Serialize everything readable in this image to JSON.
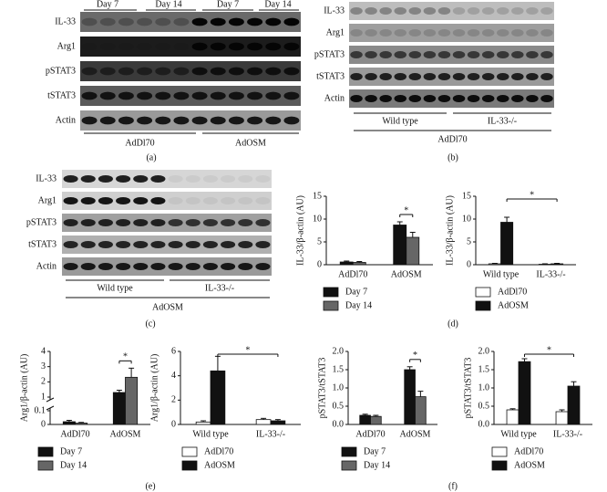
{
  "blots": [
    {
      "rows": [
        "IL-33",
        "Arg1",
        "pSTAT3",
        "tSTAT3",
        "Actin"
      ],
      "top_labels": [
        "Day 7",
        "Day 14",
        "Day 7",
        "Day 14"
      ],
      "groups": [
        "AdDl70",
        "AdOSM"
      ],
      "caption": "(a)"
    },
    {
      "rows": [
        "IL-33",
        "Arg1",
        "pSTAT3",
        "tSTAT3",
        "Actin"
      ],
      "groups": [
        "Wild type",
        "IL-33-/-"
      ],
      "treatment": "AdDl70",
      "caption": "(b)"
    },
    {
      "rows": [
        "IL-33",
        "Arg1",
        "pSTAT3",
        "tSTAT3",
        "Actin"
      ],
      "groups": [
        "Wild type",
        "IL-33-/-"
      ],
      "treatment": "AdOSM",
      "caption": "(c)"
    }
  ],
  "panel_labels": [
    "(d)",
    "(e)",
    "(f)"
  ],
  "chart_data": [
    {
      "type": "bar",
      "ylabel": "IL-33/β-actin (AU)",
      "categories": [
        "AdDl70",
        "AdOSM"
      ],
      "ylim": [
        0,
        15
      ],
      "yticks": [
        0,
        5,
        10,
        15
      ],
      "annotation": "*",
      "significance": "within",
      "series": [
        {
          "name": "Day 7",
          "color": "#111111",
          "values": [
            0.6,
            8.7
          ],
          "errors": [
            0.2,
            0.7
          ]
        },
        {
          "name": "Day 14",
          "color": "#666666",
          "values": [
            0.5,
            6.0
          ],
          "errors": [
            0.2,
            1.1
          ]
        }
      ]
    },
    {
      "type": "bar",
      "ylabel": "IL-33/β-actin (AU)",
      "categories": [
        "Wild type",
        "IL-33-/-"
      ],
      "ylim": [
        0,
        15
      ],
      "yticks": [
        0,
        5,
        10,
        15
      ],
      "annotation": "*",
      "significance": "across",
      "series": [
        {
          "name": "AdDl70",
          "color": "#ffffff",
          "values": [
            0.2,
            0.1
          ],
          "errors": [
            0.1,
            0.1
          ]
        },
        {
          "name": "AdOSM",
          "color": "#111111",
          "values": [
            9.3,
            0.2
          ],
          "errors": [
            1.1,
            0.1
          ]
        }
      ]
    },
    {
      "type": "bar",
      "ylabel": "Arg1/β-actin (AU)",
      "categories": [
        "AdDl70",
        "AdOSM"
      ],
      "ylim": [
        0,
        4
      ],
      "ybreak": [
        0.1,
        1
      ],
      "yticks": [
        0,
        0.1,
        1,
        2,
        3,
        4
      ],
      "annotation": "*",
      "significance": "within",
      "series": [
        {
          "name": "Day 7",
          "color": "#111111",
          "values": [
            0.02,
            1.3
          ],
          "errors": [
            0.01,
            0.15
          ]
        },
        {
          "name": "Day 14",
          "color": "#666666",
          "values": [
            0.01,
            2.3
          ],
          "errors": [
            0.005,
            0.6
          ]
        }
      ]
    },
    {
      "type": "bar",
      "ylabel": "Arg1/β-actin (AU)",
      "categories": [
        "Wild type",
        "IL-33-/-"
      ],
      "ylim": [
        0,
        6
      ],
      "yticks": [
        0,
        2,
        4,
        6
      ],
      "annotation": "*",
      "significance": "across",
      "series": [
        {
          "name": "AdDl70",
          "color": "#ffffff",
          "values": [
            0.2,
            0.4
          ],
          "errors": [
            0.1,
            0.1
          ]
        },
        {
          "name": "AdOSM",
          "color": "#111111",
          "values": [
            4.4,
            0.3
          ],
          "errors": [
            1.2,
            0.1
          ]
        }
      ]
    },
    {
      "type": "bar",
      "ylabel": "pSTAT3/tSTAT3",
      "categories": [
        "AdDl70",
        "AdOSM"
      ],
      "ylim": [
        0,
        2
      ],
      "yticks": [
        {
          "value": 0,
          "label": "0.0"
        },
        0.5,
        {
          "value": 1,
          "label": "1.0"
        },
        1.5,
        {
          "value": 2,
          "label": "2.0"
        }
      ],
      "annotation": "*",
      "significance": "within",
      "series": [
        {
          "name": "Day 7",
          "color": "#111111",
          "values": [
            0.25,
            1.5
          ],
          "errors": [
            0.03,
            0.08
          ]
        },
        {
          "name": "Day 14",
          "color": "#666666",
          "values": [
            0.22,
            0.76
          ],
          "errors": [
            0.03,
            0.15
          ]
        }
      ]
    },
    {
      "type": "bar",
      "ylabel": "pSTAT3/tSTAT3",
      "categories": [
        "Wild type",
        "IL-33-/-"
      ],
      "ylim": [
        0,
        2
      ],
      "yticks": [
        {
          "value": 0,
          "label": "0.0"
        },
        0.5,
        {
          "value": 1,
          "label": "1.0"
        },
        1.5,
        {
          "value": 2,
          "label": "2.0"
        }
      ],
      "annotation": "*",
      "significance": "across",
      "series": [
        {
          "name": "AdDl70",
          "color": "#ffffff",
          "values": [
            0.4,
            0.35
          ],
          "errors": [
            0.03,
            0.05
          ]
        },
        {
          "name": "AdOSM",
          "color": "#111111",
          "values": [
            1.72,
            1.05
          ],
          "errors": [
            0.08,
            0.12
          ]
        }
      ]
    }
  ]
}
